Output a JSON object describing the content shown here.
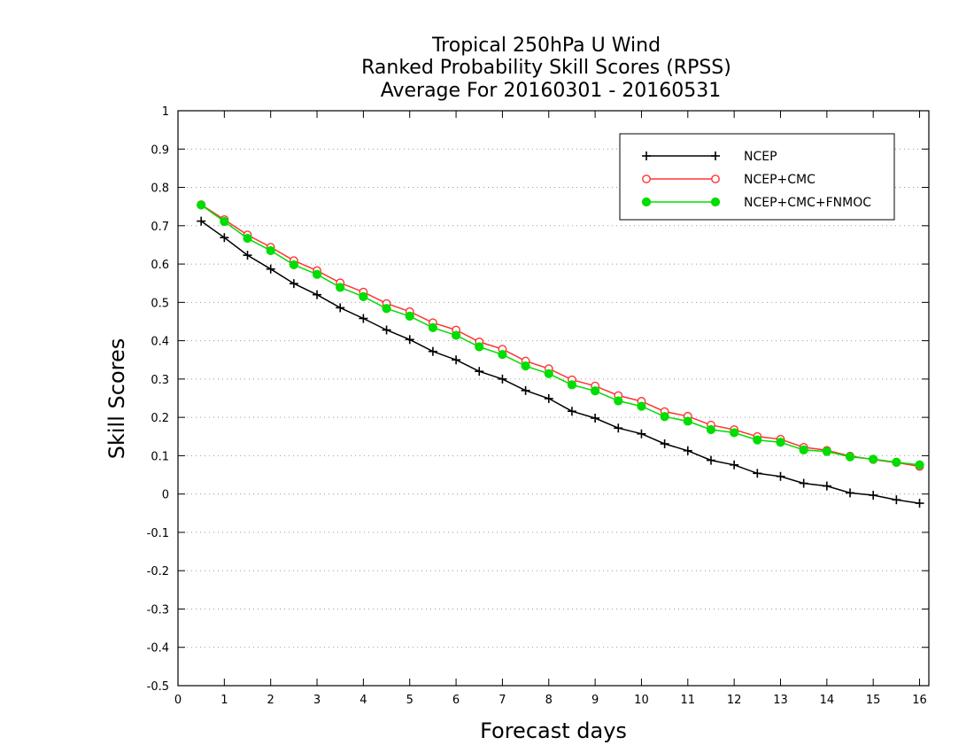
{
  "chart_data": {
    "type": "line",
    "title_lines": [
      "Tropical 250hPa U Wind",
      "Ranked Probability Skill Scores (RPSS)",
      "Average For 20160301 - 20160531"
    ],
    "xlabel": "Forecast days",
    "ylabel": "Skill Scores",
    "xlim": [
      0,
      16.2
    ],
    "ylim": [
      -0.5,
      1
    ],
    "xticks": [
      0,
      1,
      2,
      3,
      4,
      5,
      6,
      7,
      8,
      9,
      10,
      11,
      12,
      13,
      14,
      15,
      16
    ],
    "yticks": [
      -0.5,
      -0.4,
      -0.3,
      -0.2,
      -0.1,
      0,
      0.1,
      0.2,
      0.3,
      0.4,
      0.5,
      0.6,
      0.7,
      0.8,
      0.9,
      1
    ],
    "ytick_labels": [
      "-0.5",
      "-0.4",
      "-0.3",
      "-0.2",
      "-0.1",
      "0",
      "0.1",
      "0.2",
      "0.3",
      "0.4",
      "0.5",
      "0.6",
      "0.7",
      "0.8",
      "0.9",
      "1"
    ],
    "grid": "horizontal dotted",
    "legend_position": "top-right",
    "x": [
      0.5,
      1,
      1.5,
      2,
      2.5,
      3,
      3.5,
      4,
      4.5,
      5,
      5.5,
      6,
      6.5,
      7,
      7.5,
      8,
      8.5,
      9,
      9.5,
      10,
      10.5,
      11,
      11.5,
      12,
      12.5,
      13,
      13.5,
      14,
      14.5,
      15,
      15.5,
      16
    ],
    "series": [
      {
        "name": "NCEP",
        "color": "#000000",
        "marker": "plus",
        "values": [
          0.712,
          0.669,
          0.623,
          0.587,
          0.549,
          0.52,
          0.486,
          0.458,
          0.428,
          0.403,
          0.372,
          0.35,
          0.32,
          0.3,
          0.27,
          0.249,
          0.216,
          0.198,
          0.172,
          0.157,
          0.131,
          0.113,
          0.088,
          0.076,
          0.054,
          0.046,
          0.028,
          0.021,
          0.003,
          -0.003,
          -0.015,
          -0.024
        ]
      },
      {
        "name": "NCEP+CMC",
        "color": "#ff3333",
        "marker": "open-circle",
        "values": [
          0.755,
          0.716,
          0.676,
          0.644,
          0.609,
          0.583,
          0.551,
          0.527,
          0.497,
          0.476,
          0.447,
          0.428,
          0.397,
          0.378,
          0.347,
          0.327,
          0.298,
          0.282,
          0.257,
          0.242,
          0.215,
          0.203,
          0.18,
          0.168,
          0.15,
          0.143,
          0.122,
          0.114,
          0.099,
          0.09,
          0.082,
          0.072
        ]
      },
      {
        "name": "NCEP+CMC+FNMOC",
        "color": "#00dd00",
        "marker": "filled-circle",
        "values": [
          0.754,
          0.711,
          0.667,
          0.635,
          0.598,
          0.573,
          0.539,
          0.515,
          0.484,
          0.464,
          0.434,
          0.414,
          0.384,
          0.364,
          0.334,
          0.314,
          0.285,
          0.269,
          0.243,
          0.229,
          0.202,
          0.19,
          0.168,
          0.16,
          0.141,
          0.135,
          0.115,
          0.111,
          0.097,
          0.091,
          0.083,
          0.076
        ]
      }
    ]
  }
}
